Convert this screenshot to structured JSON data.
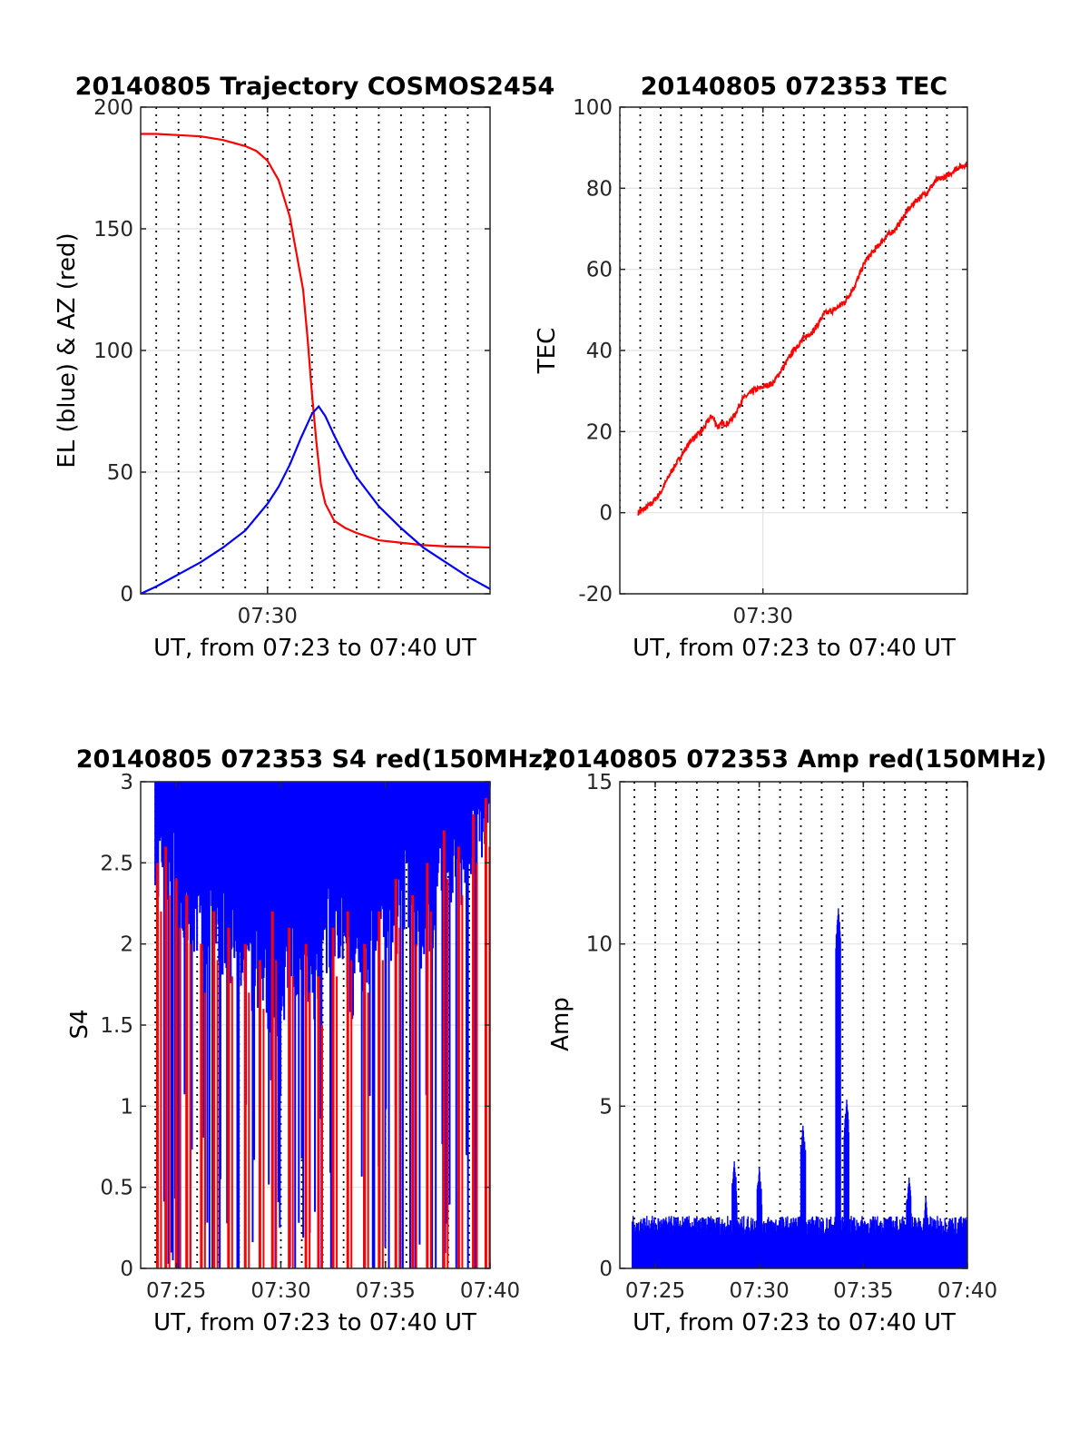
{
  "chart_data": [
    {
      "type": "line",
      "title": "20140805 Trajectory COSMOS2454",
      "xlabel": "UT, from 07:23 to 07:40 UT",
      "ylabel": "EL (blue) & AZ (red)",
      "xlim": [
        24.3,
        40
      ],
      "ylim": [
        0,
        200
      ],
      "x_ticks": [
        {
          "value": 30,
          "label": "07:30"
        }
      ],
      "y_ticks": [
        {
          "value": 0,
          "label": "0"
        },
        {
          "value": 50,
          "label": "50"
        },
        {
          "value": 100,
          "label": "100"
        },
        {
          "value": 150,
          "label": "150"
        },
        {
          "value": 200,
          "label": "200"
        }
      ],
      "grid": true,
      "minute_lines": true,
      "series": [
        {
          "color": "#ff0000",
          "x": [
            24.3,
            25,
            26,
            27,
            28,
            29,
            29.5,
            30,
            30.5,
            31,
            31.3,
            31.6,
            31.8,
            32,
            32.2,
            32.4,
            32.6,
            33,
            33.5,
            34,
            35,
            36,
            37,
            38,
            39,
            40
          ],
          "y": [
            189,
            189,
            188.5,
            188,
            186.5,
            184,
            182,
            178,
            170,
            155,
            140,
            125,
            105,
            82,
            62,
            45,
            37,
            30,
            27,
            25,
            22,
            21,
            20,
            19.5,
            19.3,
            19
          ]
        },
        {
          "color": "#0000ff",
          "x": [
            24.3,
            25,
            26,
            27,
            28,
            29,
            30,
            30.5,
            31,
            31.5,
            32,
            32.3,
            32.6,
            33,
            33.5,
            34,
            35,
            36,
            37,
            38,
            39,
            40
          ],
          "y": [
            0,
            3,
            8,
            13,
            19,
            26,
            37,
            44,
            53,
            64,
            74,
            77,
            73,
            65,
            56,
            48,
            36,
            27,
            19,
            13,
            7,
            2
          ]
        }
      ]
    },
    {
      "type": "line",
      "title": "20140805 072353 TEC",
      "xlabel": "UT, from 07:23 to 07:40 UT",
      "ylabel": "TEC",
      "xlim": [
        23,
        40
      ],
      "ylim": [
        -20,
        100
      ],
      "x_ticks": [
        {
          "value": 30,
          "label": "07:30"
        }
      ],
      "y_ticks": [
        {
          "value": -20,
          "label": "-20"
        },
        {
          "value": 0,
          "label": "0"
        },
        {
          "value": 20,
          "label": "20"
        },
        {
          "value": 40,
          "label": "40"
        },
        {
          "value": 60,
          "label": "60"
        },
        {
          "value": 80,
          "label": "80"
        },
        {
          "value": 100,
          "label": "100"
        }
      ],
      "grid": true,
      "minute_lines": true,
      "white_band_below": 0,
      "series": [
        {
          "color": "#ff0000",
          "x": [
            23.9,
            24.5,
            25,
            25.5,
            26,
            26.5,
            27,
            27.5,
            27.8,
            28,
            28.3,
            28.6,
            29,
            29.5,
            30,
            30.5,
            31,
            31.5,
            32,
            32.5,
            33,
            33.5,
            34,
            34.5,
            35,
            35.5,
            36,
            36.5,
            37,
            37.5,
            38,
            38.5,
            39,
            39.5,
            40
          ],
          "y": [
            0,
            2,
            5,
            10,
            14,
            18,
            20,
            24,
            21,
            22,
            22,
            24,
            28,
            30,
            31,
            32,
            36,
            40,
            43,
            45,
            49,
            50,
            52,
            56,
            62,
            65,
            68,
            70,
            74,
            77,
            79,
            82,
            83,
            85,
            86
          ]
        }
      ]
    },
    {
      "type": "bar",
      "title": "20140805 072353 S4 red(150MHz)",
      "xlabel": "UT, from 07:23 to 07:40 UT",
      "ylabel": "S4",
      "xlim": [
        23.3,
        40
      ],
      "ylim": [
        0,
        3
      ],
      "x_ticks": [
        {
          "value": 25,
          "label": "07:25"
        },
        {
          "value": 30,
          "label": "07:30"
        },
        {
          "value": 35,
          "label": "07:35"
        },
        {
          "value": 40,
          "label": "07:40"
        }
      ],
      "y_ticks": [
        {
          "value": 0,
          "label": "0"
        },
        {
          "value": 0.5,
          "label": "0.5"
        },
        {
          "value": 1,
          "label": "1"
        },
        {
          "value": 1.5,
          "label": "1.5"
        },
        {
          "value": 2,
          "label": "2"
        },
        {
          "value": 2.5,
          "label": "2.5"
        },
        {
          "value": 3,
          "label": "3"
        }
      ],
      "grid": true,
      "minute_lines": true,
      "envelope": [
        {
          "color": "#0000ff",
          "x": [
            24,
            25,
            26,
            27,
            28,
            29,
            30,
            30.5,
            31,
            31.5,
            32,
            32.5,
            33,
            33.5,
            34,
            34.5,
            35,
            35.5,
            36,
            36.5,
            37,
            37.5,
            38,
            38.5,
            39,
            39.5,
            40
          ],
          "y": [
            2.6,
            2.4,
            2.2,
            2.1,
            2.0,
            1.8,
            1.7,
            1.9,
            2.0,
            1.6,
            1.9,
            2.2,
            2.0,
            1.7,
            1.9,
            2.2,
            2.3,
            2.1,
            2.4,
            2.2,
            2.0,
            2.5,
            2.6,
            2.4,
            2.7,
            2.8,
            2.9
          ]
        }
      ],
      "red_spikes": [
        {
          "x": 24.1,
          "y": 2.5
        },
        {
          "x": 24.5,
          "y": 2.6
        },
        {
          "x": 25.0,
          "y": 2.4
        },
        {
          "x": 25.5,
          "y": 2.3
        },
        {
          "x": 26.2,
          "y": 2.0
        },
        {
          "x": 26.8,
          "y": 2.2
        },
        {
          "x": 27.5,
          "y": 2.1
        },
        {
          "x": 28.3,
          "y": 2.0
        },
        {
          "x": 29.0,
          "y": 1.9
        },
        {
          "x": 29.6,
          "y": 2.2
        },
        {
          "x": 30.4,
          "y": 2.1
        },
        {
          "x": 31.2,
          "y": 2.0
        },
        {
          "x": 31.8,
          "y": 1.8
        },
        {
          "x": 32.5,
          "y": 2.1
        },
        {
          "x": 33.2,
          "y": 2.2
        },
        {
          "x": 34.0,
          "y": 2.0
        },
        {
          "x": 34.7,
          "y": 2.2
        },
        {
          "x": 35.5,
          "y": 2.4
        },
        {
          "x": 36.3,
          "y": 2.3
        },
        {
          "x": 37.0,
          "y": 2.5
        },
        {
          "x": 37.8,
          "y": 2.7
        },
        {
          "x": 38.5,
          "y": 2.6
        },
        {
          "x": 39.2,
          "y": 2.8
        },
        {
          "x": 39.8,
          "y": 2.9
        }
      ]
    },
    {
      "type": "bar",
      "title": "20140805 072353 Amp red(150MHz)",
      "xlabel": "UT, from 07:23 to 07:40 UT",
      "ylabel": "Amp",
      "xlim": [
        23.3,
        40
      ],
      "ylim": [
        0,
        15
      ],
      "x_ticks": [
        {
          "value": 25,
          "label": "07:25"
        },
        {
          "value": 30,
          "label": "07:30"
        },
        {
          "value": 35,
          "label": "07:35"
        },
        {
          "value": 40,
          "label": "07:40"
        }
      ],
      "y_ticks": [
        {
          "value": 0,
          "label": "0"
        },
        {
          "value": 5,
          "label": "5"
        },
        {
          "value": 10,
          "label": "10"
        },
        {
          "value": 15,
          "label": "15"
        }
      ],
      "grid": true,
      "minute_lines": true,
      "baseline": 1.2,
      "peaks": [
        {
          "x": 28.8,
          "y": 3.3
        },
        {
          "x": 30.0,
          "y": 3.1
        },
        {
          "x": 32.1,
          "y": 4.4
        },
        {
          "x": 33.8,
          "y": 11.1
        },
        {
          "x": 34.2,
          "y": 5.2
        },
        {
          "x": 37.2,
          "y": 2.8
        },
        {
          "x": 38.0,
          "y": 2.2
        }
      ],
      "series": [
        {
          "color": "#0000ff"
        }
      ]
    }
  ]
}
